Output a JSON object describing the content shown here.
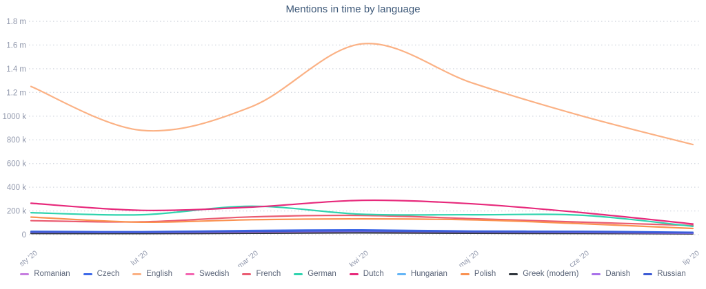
{
  "title": "Mentions in time by language",
  "colors": {
    "background": "#ffffff",
    "title_text": "#3d5878",
    "axis_tick_text": "#9299ad",
    "gridline": "#d5d9e1",
    "legend_text": "#5b6579"
  },
  "chart_data": {
    "type": "line",
    "title": "Mentions in time by language",
    "xlabel": "",
    "ylabel": "",
    "x": [
      "sty '20",
      "lut '20",
      "mar '20",
      "kwi '20",
      "maj '20",
      "cze '20",
      "lip '20"
    ],
    "y_ticks": [
      "0",
      "200 k",
      "400 k",
      "600 k",
      "800 k",
      "1000 k",
      "1.2 m",
      "1.4 m",
      "1.6 m",
      "1.8 m"
    ],
    "y_tick_values_k": [
      0,
      200,
      400,
      600,
      800,
      1000,
      1200,
      1400,
      1600,
      1800
    ],
    "ylim_k": [
      0,
      1800
    ],
    "unit": "thousands of mentions (k)",
    "grid": "dotted horizontal gridlines",
    "legend_position": "bottom",
    "line_style": "smooth",
    "series": [
      {
        "name": "Romanian",
        "color": "#c77ee0",
        "values_k": [
          12,
          10,
          14,
          18,
          14,
          12,
          8
        ]
      },
      {
        "name": "Czech",
        "color": "#3f6ae8",
        "values_k": [
          28,
          25,
          35,
          40,
          30,
          28,
          20
        ]
      },
      {
        "name": "English",
        "color": "#fbb184",
        "values_k": [
          1250,
          880,
          1080,
          1610,
          1280,
          1000,
          760
        ]
      },
      {
        "name": "Swedish",
        "color": "#f466b1",
        "values_k": [
          15,
          13,
          18,
          22,
          16,
          13,
          9
        ]
      },
      {
        "name": "French",
        "color": "#ea5c72",
        "values_k": [
          118,
          108,
          150,
          162,
          135,
          105,
          78
        ]
      },
      {
        "name": "German",
        "color": "#2fd3ae",
        "values_k": [
          185,
          168,
          240,
          172,
          168,
          163,
          70
        ]
      },
      {
        "name": "Dutch",
        "color": "#e7297b",
        "values_k": [
          265,
          205,
          232,
          290,
          260,
          185,
          90
        ]
      },
      {
        "name": "Hungarian",
        "color": "#64b5f6",
        "values_k": [
          18,
          15,
          20,
          25,
          20,
          18,
          12
        ]
      },
      {
        "name": "Polish",
        "color": "#fa9150",
        "values_k": [
          148,
          105,
          126,
          133,
          125,
          92,
          52
        ]
      },
      {
        "name": "Greek (modern)",
        "color": "#30363d",
        "values_k": [
          10,
          9,
          12,
          15,
          12,
          10,
          7
        ]
      },
      {
        "name": "Danish",
        "color": "#a971ea",
        "values_k": [
          20,
          18,
          22,
          28,
          22,
          18,
          12
        ]
      },
      {
        "name": "Russian",
        "color": "#3d5bd4",
        "values_k": [
          22,
          20,
          28,
          32,
          25,
          22,
          15
        ]
      }
    ]
  }
}
